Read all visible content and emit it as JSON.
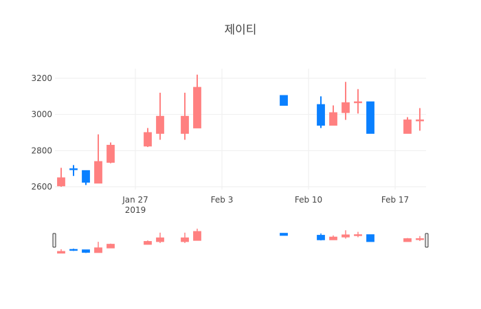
{
  "chart_data": {
    "type": "candlestick",
    "title": "제이티",
    "x": [
      "2019-01-21",
      "2019-01-22",
      "2019-01-23",
      "2019-01-24",
      "2019-01-25",
      "2019-01-28",
      "2019-01-29",
      "2019-01-31",
      "2019-02-01",
      "2019-02-08",
      "2019-02-11",
      "2019-02-12",
      "2019-02-13",
      "2019-02-14",
      "2019-02-15",
      "2019-02-18",
      "2019-02-19"
    ],
    "open": [
      2605,
      2700,
      2690,
      2620,
      2735,
      2825,
      2895,
      2895,
      2925,
      3105,
      3055,
      2940,
      3010,
      3065,
      3070,
      2895,
      2965
    ],
    "high": [
      2705,
      2720,
      2690,
      2890,
      2845,
      2925,
      3120,
      3120,
      3220,
      3105,
      3100,
      3050,
      3180,
      3140,
      3070,
      2985,
      3035
    ],
    "low": [
      2600,
      2660,
      2610,
      2620,
      2730,
      2820,
      2860,
      2860,
      2925,
      3050,
      2925,
      2940,
      2970,
      3005,
      2895,
      2895,
      2910
    ],
    "close": [
      2650,
      2695,
      2625,
      2740,
      2830,
      2900,
      2990,
      2990,
      3150,
      3050,
      2940,
      3010,
      3065,
      3070,
      2895,
      2970,
      2970
    ],
    "increasing_color": "#ff8080",
    "decreasing_color": "#0a80ff",
    "xlim": [
      "2019-01-20 12:00",
      "2019-02-19 12:00"
    ],
    "xticks": [
      {
        "value": "2019-01-27",
        "label": "Jan 27\n2019"
      },
      {
        "value": "2019-02-03",
        "label": "Feb 3"
      },
      {
        "value": "2019-02-10",
        "label": "Feb 10"
      },
      {
        "value": "2019-02-17",
        "label": "Feb 17"
      }
    ],
    "ylim": [
      2585,
      3253
    ],
    "yticks": [
      2600,
      2800,
      3000,
      3200
    ],
    "grid": true,
    "rangeslider": true
  }
}
